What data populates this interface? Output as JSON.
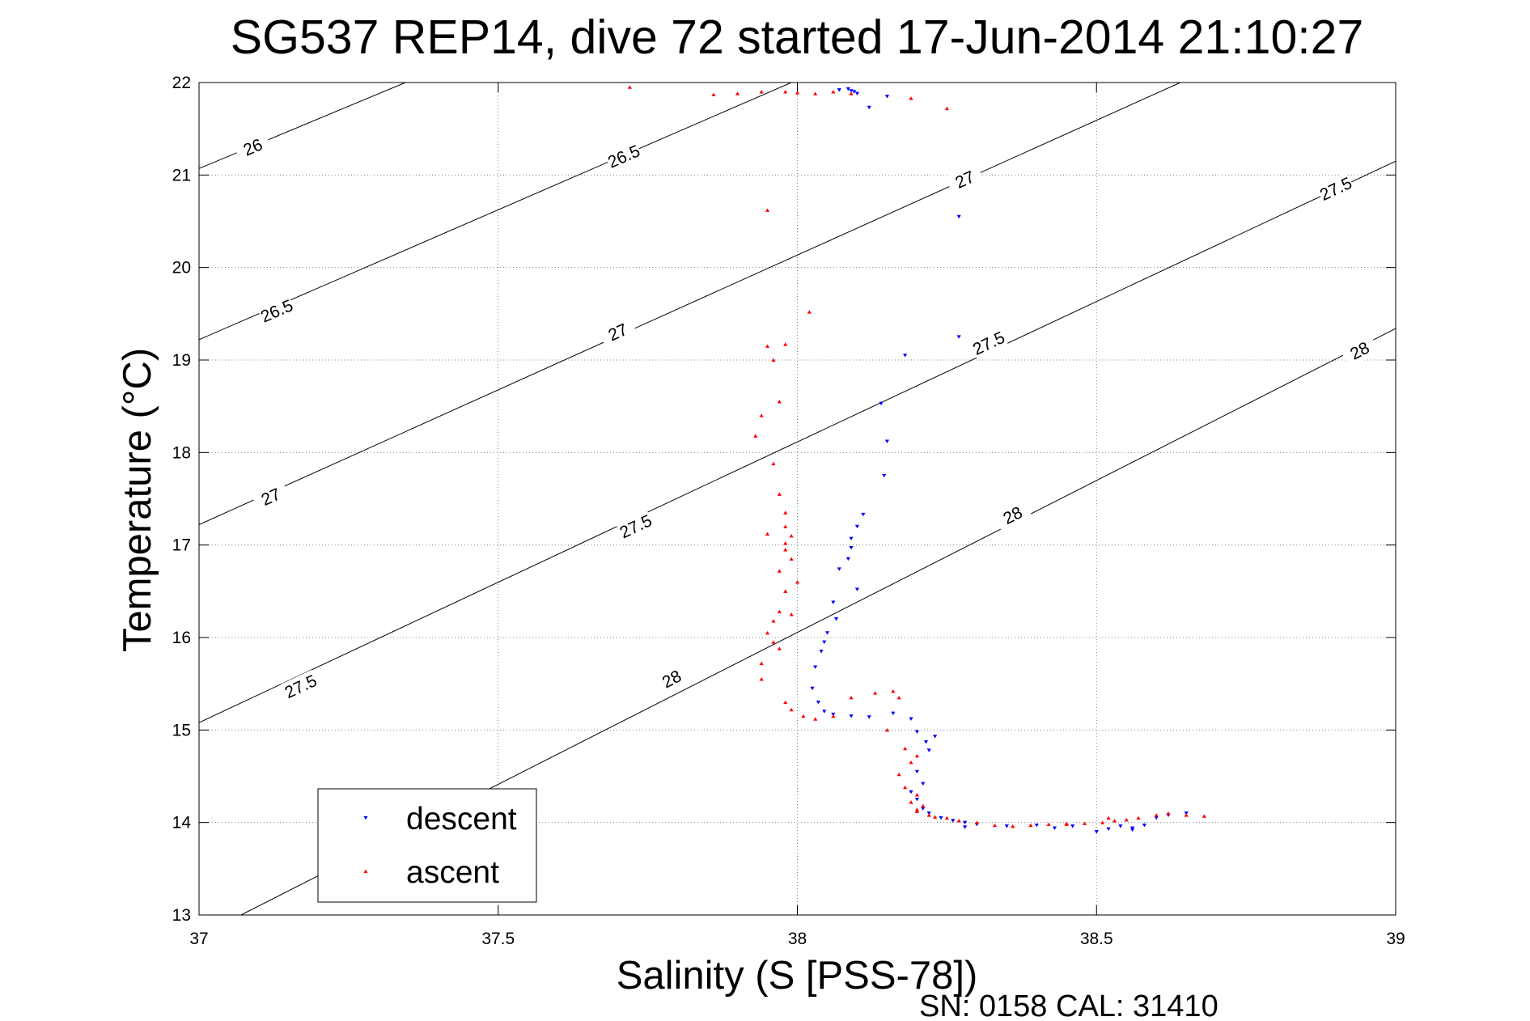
{
  "chart_data": {
    "type": "scatter",
    "title": "SG537 REP14, dive 72 started 17-Jun-2014 21:10:27",
    "xlabel": "Salinity (S [PSS-78])",
    "ylabel": "Temperature (°C)",
    "annotation": "SN: 0158  CAL: 31410",
    "xlim": [
      37,
      39
    ],
    "ylim": [
      13,
      22
    ],
    "x_ticks": [
      "37",
      "37.5",
      "38",
      "38.5",
      "39"
    ],
    "y_ticks": [
      "13",
      "14",
      "15",
      "16",
      "17",
      "18",
      "19",
      "20",
      "21",
      "22"
    ],
    "grid": true,
    "legend_position": "bottom-left",
    "colors": {
      "descent": "#0000ff",
      "ascent": "#ff0000",
      "contour": "#000000",
      "grid": "#808080"
    },
    "contours": [
      {
        "level": "26",
        "points": [
          [
            37,
            21.07
          ],
          [
            37.345,
            22
          ]
        ],
        "labels": [
          [
            37.09,
            21.3
          ]
        ]
      },
      {
        "level": "26.5",
        "points": [
          [
            37,
            19.22
          ],
          [
            37.99,
            22
          ]
        ],
        "labels": [
          [
            37.13,
            19.53
          ],
          [
            37.71,
            21.2
          ]
        ]
      },
      {
        "level": "27",
        "points": [
          [
            37,
            17.22
          ],
          [
            38.64,
            22
          ]
        ],
        "labels": [
          [
            37.12,
            17.52
          ],
          [
            37.7,
            19.3
          ],
          [
            38.28,
            20.95
          ]
        ]
      },
      {
        "level": "27.5",
        "points": [
          [
            37,
            15.08
          ],
          [
            39,
            21.15
          ]
        ],
        "labels": [
          [
            37.17,
            15.47
          ],
          [
            37.73,
            17.2
          ],
          [
            38.32,
            19.18
          ],
          [
            38.9,
            20.85
          ]
        ]
      },
      {
        "level": "28",
        "points": [
          [
            37.07,
            13
          ],
          [
            39,
            19.34
          ]
        ],
        "labels": [
          [
            37.79,
            15.55
          ],
          [
            38.36,
            17.32
          ],
          [
            38.94,
            19.1
          ]
        ]
      }
    ],
    "series": [
      {
        "name": "descent",
        "marker": "triangle-down",
        "x": [
          38.07,
          38.085,
          38.09,
          38.095,
          38.1,
          38.12,
          38.15,
          38.27,
          38.27,
          38.18,
          38.14,
          38.15,
          38.145,
          38.11,
          38.1,
          38.09,
          38.09,
          38.085,
          38.07,
          38.1,
          38.06,
          38.065,
          38.05,
          38.045,
          38.04,
          38.03,
          38.025,
          38.035,
          38.045,
          38.06,
          38.09,
          38.12,
          38.16,
          38.19,
          38.2,
          38.215,
          38.22,
          38.23,
          38.2,
          38.21,
          38.19,
          38.2,
          38.21,
          38.22,
          38.24,
          38.26,
          38.28,
          38.3,
          38.35,
          38.4,
          38.43,
          38.46,
          38.5,
          38.52,
          38.54,
          38.56,
          38.58,
          38.6,
          38.62,
          38.65,
          38.56,
          38.28
        ],
        "y": [
          21.92,
          21.93,
          21.91,
          21.9,
          21.88,
          21.73,
          21.85,
          20.55,
          19.25,
          19.05,
          18.53,
          18.12,
          17.75,
          17.33,
          17.2,
          17.07,
          16.97,
          16.85,
          16.74,
          16.52,
          16.38,
          16.2,
          16.05,
          15.95,
          15.85,
          15.68,
          15.45,
          15.3,
          15.2,
          15.17,
          15.15,
          15.14,
          15.18,
          15.12,
          14.98,
          14.87,
          14.78,
          14.93,
          14.55,
          14.42,
          14.33,
          14.25,
          14.15,
          14.1,
          14.05,
          14.02,
          14.0,
          13.98,
          13.96,
          13.97,
          13.94,
          13.96,
          13.9,
          13.93,
          13.96,
          13.94,
          13.97,
          14.05,
          14.08,
          14.1,
          13.92,
          13.95
        ]
      },
      {
        "name": "ascent",
        "marker": "triangle-up",
        "x": [
          37.72,
          37.86,
          37.9,
          37.94,
          37.98,
          38.0,
          38.03,
          38.06,
          38.09,
          38.19,
          38.25,
          37.95,
          38.02,
          37.95,
          37.98,
          37.96,
          37.94,
          37.97,
          37.93,
          37.96,
          37.97,
          37.98,
          37.98,
          37.99,
          37.98,
          37.95,
          37.98,
          37.99,
          37.97,
          38.0,
          37.98,
          37.97,
          37.99,
          37.96,
          37.95,
          37.96,
          37.97,
          37.94,
          37.94,
          37.98,
          37.99,
          38.01,
          38.03,
          38.06,
          38.09,
          38.13,
          38.16,
          38.17,
          38.15,
          38.18,
          38.19,
          38.2,
          38.17,
          38.18,
          38.2,
          38.19,
          38.21,
          38.2,
          38.22,
          38.2,
          38.23,
          38.25,
          38.27,
          38.3,
          38.33,
          38.36,
          38.39,
          38.42,
          38.45,
          38.48,
          38.51,
          38.53,
          38.55,
          38.57,
          38.6,
          38.62,
          38.65,
          38.68,
          38.52,
          38.45
        ],
        "y": [
          21.95,
          21.87,
          21.88,
          21.9,
          21.9,
          21.89,
          21.88,
          21.9,
          21.88,
          21.83,
          21.72,
          20.62,
          19.52,
          19.15,
          19.17,
          19.0,
          18.4,
          18.55,
          18.18,
          17.88,
          17.55,
          17.35,
          17.2,
          17.1,
          17.02,
          17.12,
          16.95,
          16.85,
          16.72,
          16.6,
          16.5,
          16.28,
          16.25,
          16.18,
          16.05,
          15.95,
          15.88,
          15.72,
          15.55,
          15.3,
          15.22,
          15.15,
          15.12,
          15.15,
          15.35,
          15.4,
          15.42,
          15.35,
          15.0,
          14.8,
          14.65,
          14.72,
          14.52,
          14.38,
          14.3,
          14.22,
          14.18,
          14.12,
          14.08,
          14.14,
          14.06,
          14.05,
          14.02,
          14.0,
          13.97,
          13.96,
          13.97,
          13.98,
          13.98,
          13.99,
          14.0,
          14.02,
          14.03,
          14.05,
          14.08,
          14.1,
          14.08,
          14.07,
          14.05,
          13.99
        ]
      }
    ]
  }
}
